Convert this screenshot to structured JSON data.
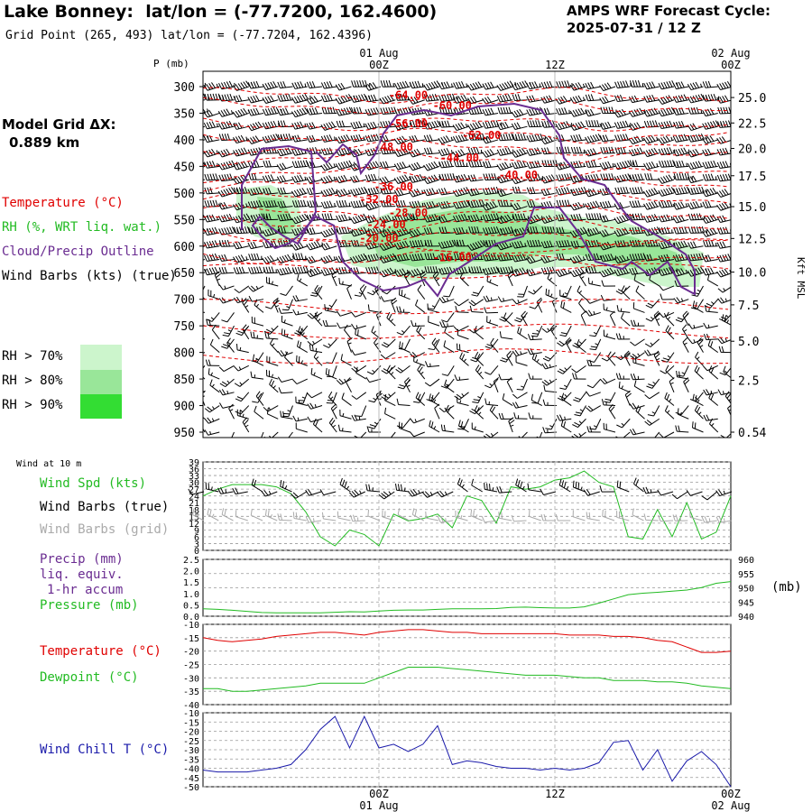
{
  "header": {
    "station": "Lake Bonney:",
    "latlon": "lat/lon = (-77.7200, 162.4600)",
    "grid_point": "Grid Point (265, 493) lat/lon = (-77.7204, 162.4396)",
    "cycle_label": "AMPS WRF Forecast Cycle:",
    "cycle_value": "2025-07-31 / 12  Z"
  },
  "legend": {
    "model_grid_line1": "Model Grid ΔX:",
    "model_grid_line2": "0.889 km",
    "temperature": "Temperature (°C)",
    "rh": "RH (%, WRT liq. wat.)",
    "cloud": "Cloud/Precip Outline",
    "barbs": "Wind Barbs (kts) (true)",
    "rh70": "RH > 70%",
    "rh80": "RH > 80%",
    "rh90": "RH > 90%",
    "wind10m": "Wind at 10 m",
    "wind_spd": "Wind Spd (kts)",
    "barbs_true": "Wind Barbs (true)",
    "barbs_grid": "Wind Barbs (grid)",
    "precip1": "Precip (mm)",
    "precip2": "liq. equiv.",
    "precip3": "1-hr accum",
    "pressure": "Pressure (mb)",
    "pressure_unit": "(mb)",
    "temp2": "Temperature (°C)",
    "dewpoint": "Dewpoint (°C)",
    "windchill": "Wind Chill T (°C)"
  },
  "colors": {
    "temperature": "#e00000",
    "rh70": "#ccf5cc",
    "rh80": "#99e699",
    "rh90": "#33dd33",
    "cloud": "#6a2c91",
    "wind_spd": "#22bb22",
    "barbs_grid": "#aaaaaa",
    "precip": "#6a2c91",
    "pressure": "#22bb22",
    "dewpoint": "#22bb22",
    "windchill": "#1a1aaa",
    "grid": "#999999"
  },
  "chart_data": [
    {
      "type": "contour",
      "ylabel_left": "P (mb)",
      "ylabel_right": "Kft MSL",
      "pressure_ticks": [
        300,
        350,
        400,
        450,
        500,
        550,
        600,
        650,
        700,
        750,
        800,
        850,
        900,
        950
      ],
      "height_ticks": [
        {
          "label": "25.0",
          "p": 312
        },
        {
          "label": "22.5",
          "p": 340
        },
        {
          "label": "20.0",
          "p": 368
        },
        {
          "label": "17.5",
          "p": 398
        },
        {
          "label": "15.0",
          "p": 432
        },
        {
          "label": "12.5",
          "p": 467
        },
        {
          "label": "10.0",
          "p": 504
        },
        {
          "label": "7.5",
          "p": 540
        },
        {
          "label": "5.0",
          "p": 580
        },
        {
          "label": "2.5",
          "p": 623
        },
        {
          "label": "0.54",
          "p": 680
        }
      ],
      "top_time_labels": [
        {
          "date": "01 Aug",
          "hour": "00Z",
          "t": 12
        },
        {
          "date": "",
          "hour": "12Z",
          "t": 24
        },
        {
          "date": "02 Aug",
          "hour": "00Z",
          "t": 36
        }
      ],
      "time_range": [
        0,
        36
      ],
      "isotherms": [
        {
          "label": "-64.00",
          "t": 14.0,
          "p": 316
        },
        {
          "label": "-60.00",
          "t": 17.0,
          "p": 336
        },
        {
          "label": "-56.00",
          "t": 14.0,
          "p": 370
        },
        {
          "label": "-52.00",
          "t": 19.0,
          "p": 392
        },
        {
          "label": "-48.00",
          "t": 13.0,
          "p": 414
        },
        {
          "label": "-44.00",
          "t": 17.5,
          "p": 434
        },
        {
          "label": "-40.00",
          "t": 21.5,
          "p": 466
        },
        {
          "label": "-36.00",
          "t": 13.0,
          "p": 488
        },
        {
          "label": "-32.00",
          "t": 12.0,
          "p": 512
        },
        {
          "label": "-28.00",
          "t": 14.0,
          "p": 538
        },
        {
          "label": "-24.00",
          "t": 12.5,
          "p": 560
        },
        {
          "label": "-20.00",
          "t": 12.0,
          "p": 585
        },
        {
          "label": "-16.00",
          "t": 17.0,
          "p": 622
        }
      ]
    },
    {
      "type": "line",
      "name": "Wind Spd (kts)",
      "yticks": [
        0,
        3,
        6,
        9,
        12,
        15,
        18,
        21,
        24,
        27,
        30,
        33,
        36,
        39
      ],
      "ylim": [
        0,
        39
      ],
      "x": [
        0,
        1,
        2,
        3,
        4,
        5,
        6,
        7,
        8,
        9,
        10,
        11,
        12,
        13,
        14,
        15,
        16,
        17,
        18,
        19,
        20,
        21,
        22,
        23,
        24,
        25,
        26,
        27,
        28,
        29,
        30,
        31,
        32,
        33,
        34,
        35,
        36
      ],
      "values": [
        24,
        27,
        29,
        29,
        29,
        28,
        25,
        17,
        6,
        2,
        9,
        7,
        2,
        16,
        13,
        14,
        16,
        10,
        24,
        22,
        12,
        28,
        27,
        28,
        31,
        32,
        35,
        30,
        28,
        6,
        5,
        18,
        6,
        21,
        5,
        8,
        24
      ]
    },
    {
      "type": "line",
      "name": "Pressure (mb)",
      "yticks_left": [
        0.0,
        0.5,
        1.0,
        1.5,
        2.0,
        2.5
      ],
      "yticks_right": [
        940,
        945,
        950,
        955,
        960
      ],
      "ylim": [
        940,
        960
      ],
      "x": [
        0,
        1,
        2,
        3,
        4,
        5,
        6,
        7,
        8,
        9,
        10,
        11,
        12,
        13,
        14,
        15,
        16,
        17,
        18,
        19,
        20,
        21,
        22,
        23,
        24,
        25,
        26,
        27,
        28,
        29,
        30,
        31,
        32,
        33,
        34,
        35,
        36
      ],
      "values": [
        942.6,
        942.4,
        942.1,
        941.7,
        941.3,
        941.2,
        941.2,
        941.2,
        941.2,
        941.4,
        941.6,
        941.5,
        941.8,
        942.1,
        942.2,
        942.2,
        942.4,
        942.6,
        942.6,
        942.6,
        942.7,
        943.1,
        943.2,
        943.0,
        942.9,
        942.9,
        943.3,
        944.6,
        946.1,
        947.6,
        948.1,
        948.4,
        948.8,
        949.2,
        950.1,
        951.6,
        952.2
      ]
    },
    {
      "type": "line",
      "series": [
        {
          "name": "Temperature (°C)",
          "values": [
            -15,
            -16,
            -16.5,
            -16,
            -15.5,
            -14.5,
            -14,
            -13.5,
            -13,
            -13,
            -13.5,
            -14,
            -13,
            -12.5,
            -12,
            -12,
            -12.5,
            -13,
            -13,
            -13.5,
            -13.5,
            -13.5,
            -13.5,
            -13.5,
            -13.5,
            -14,
            -14,
            -14,
            -14.5,
            -14.5,
            -15,
            -16,
            -16.5,
            -18.5,
            -20.5,
            -20.5,
            -20
          ]
        },
        {
          "name": "Dewpoint (°C)",
          "values": [
            -34,
            -34,
            -35,
            -35,
            -34.5,
            -34,
            -33.5,
            -33,
            -32,
            -32,
            -32,
            -32,
            -30,
            -28,
            -26,
            -26,
            -26,
            -26.5,
            -27,
            -27.5,
            -28,
            -28.5,
            -29,
            -29,
            -29,
            -29.5,
            -30,
            -30,
            -31,
            -31,
            -31,
            -31.5,
            -31.5,
            -32,
            -33,
            -33.5,
            -34
          ]
        }
      ],
      "x": [
        0,
        1,
        2,
        3,
        4,
        5,
        6,
        7,
        8,
        9,
        10,
        11,
        12,
        13,
        14,
        15,
        16,
        17,
        18,
        19,
        20,
        21,
        22,
        23,
        24,
        25,
        26,
        27,
        28,
        29,
        30,
        31,
        32,
        33,
        34,
        35,
        36
      ],
      "yticks": [
        -40,
        -35,
        -30,
        -25,
        -20,
        -15,
        -10
      ],
      "ylim": [
        -40,
        -10
      ]
    },
    {
      "type": "line",
      "name": "Wind Chill T (°C)",
      "x": [
        0,
        1,
        2,
        3,
        4,
        5,
        6,
        7,
        8,
        9,
        10,
        11,
        12,
        13,
        14,
        15,
        16,
        17,
        18,
        19,
        20,
        21,
        22,
        23,
        24,
        25,
        26,
        27,
        28,
        29,
        30,
        31,
        32,
        33,
        34,
        35,
        36
      ],
      "values": [
        -41,
        -42,
        -42,
        -42,
        -41,
        -40,
        -38,
        -30,
        -19,
        -12,
        -29,
        -12,
        -29,
        -27,
        -31,
        -27,
        -17,
        -38,
        -36,
        -37,
        -39,
        -40,
        -40,
        -41,
        -40,
        -41,
        -40,
        -37,
        -26,
        -25,
        -41,
        -30,
        -47,
        -36,
        -31,
        -38,
        -50
      ],
      "yticks": [
        -50,
        -45,
        -40,
        -35,
        -30,
        -25,
        -20,
        -15,
        -10
      ],
      "ylim": [
        -50,
        -10
      ]
    }
  ],
  "bottom_time_labels": [
    {
      "hour": "00Z",
      "date": "01 Aug",
      "t": 12
    },
    {
      "hour": "12Z",
      "date": "",
      "t": 24
    },
    {
      "hour": "00Z",
      "date": "02 Aug",
      "t": 36
    }
  ]
}
